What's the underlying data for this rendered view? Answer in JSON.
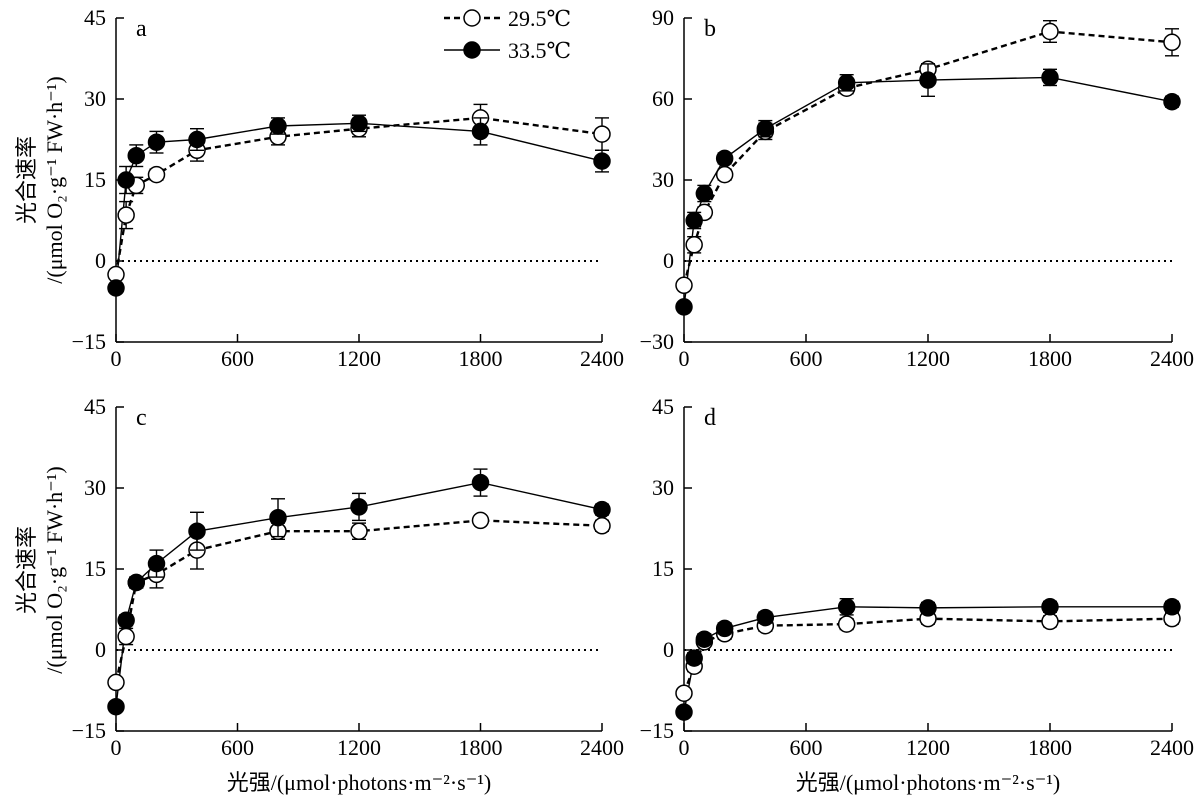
{
  "legend": {
    "items": [
      {
        "label": "29.5℃",
        "style": "open",
        "dash": "dashed"
      },
      {
        "label": "33.5℃",
        "style": "filled",
        "dash": "solid"
      }
    ]
  },
  "axes_text": {
    "ylabel_main": "光合速率",
    "ylabel_unit": "/(μmol O₂·g⁻¹ FW·h⁻¹)",
    "xlabel": "光强/(μmol·photons·m⁻²·s⁻¹)"
  },
  "chart_data": [
    {
      "type": "line",
      "panel": "a",
      "x": [
        0,
        50,
        100,
        200,
        400,
        800,
        1200,
        1800,
        2400
      ],
      "xlim": [
        0,
        2400
      ],
      "xticks": [
        0,
        600,
        1200,
        1800,
        2400
      ],
      "ylim": [
        -15,
        45
      ],
      "yticks": [
        -15,
        0,
        15,
        30,
        45
      ],
      "series": [
        {
          "name": "29.5℃",
          "values": [
            -2.5,
            8.5,
            14,
            16,
            20.5,
            23,
            24.5,
            26.5,
            23.5
          ],
          "err": [
            0,
            2.5,
            1.5,
            1,
            2,
            1.5,
            1.5,
            2.5,
            3
          ]
        },
        {
          "name": "33.5℃",
          "values": [
            -5,
            15,
            19.5,
            22,
            22.5,
            25,
            25.5,
            24,
            18.5
          ],
          "err": [
            0,
            2.5,
            2,
            2,
            2,
            1.5,
            1.5,
            2.5,
            2
          ]
        }
      ]
    },
    {
      "type": "line",
      "panel": "b",
      "x": [
        0,
        50,
        100,
        200,
        400,
        800,
        1200,
        1800,
        2400
      ],
      "xlim": [
        0,
        2400
      ],
      "xticks": [
        0,
        600,
        1200,
        1800,
        2400
      ],
      "ylim": [
        -30,
        90
      ],
      "yticks": [
        -30,
        0,
        30,
        60,
        90
      ],
      "series": [
        {
          "name": "29.5℃",
          "values": [
            -9,
            6,
            18,
            32,
            48,
            64,
            71,
            85,
            81
          ],
          "err": [
            0,
            3,
            2,
            2,
            3,
            2,
            2,
            4,
            5
          ]
        },
        {
          "name": "33.5℃",
          "values": [
            -17,
            15,
            25,
            38,
            49,
            66,
            67,
            68,
            59
          ],
          "err": [
            0,
            3,
            3,
            2,
            3,
            3,
            6,
            3,
            2
          ]
        }
      ]
    },
    {
      "type": "line",
      "panel": "c",
      "x": [
        0,
        50,
        100,
        200,
        400,
        800,
        1200,
        1800,
        2400
      ],
      "xlim": [
        0,
        2400
      ],
      "xticks": [
        0,
        600,
        1200,
        1800,
        2400
      ],
      "ylim": [
        -15,
        45
      ],
      "yticks": [
        -15,
        0,
        15,
        30,
        45
      ],
      "series": [
        {
          "name": "29.5℃",
          "values": [
            -6,
            2.5,
            12.5,
            14,
            18.5,
            22,
            22,
            24,
            23
          ],
          "err": [
            0,
            1.5,
            1,
            2.5,
            3.5,
            1.5,
            1.5,
            0.5,
            1
          ]
        },
        {
          "name": "33.5℃",
          "values": [
            -10.5,
            5.5,
            12.5,
            16,
            22,
            24.5,
            26.5,
            31,
            26
          ],
          "err": [
            0,
            1,
            1,
            2.5,
            3.5,
            3.5,
            2.5,
            2.5,
            1
          ]
        }
      ]
    },
    {
      "type": "line",
      "panel": "d",
      "x": [
        0,
        50,
        100,
        200,
        400,
        800,
        1200,
        1800,
        2400
      ],
      "xlim": [
        0,
        2400
      ],
      "xticks": [
        0,
        600,
        1200,
        1800,
        2400
      ],
      "ylim": [
        -15,
        45
      ],
      "yticks": [
        -15,
        0,
        15,
        30,
        45
      ],
      "series": [
        {
          "name": "29.5℃",
          "values": [
            -8,
            -3,
            1.5,
            3,
            4.5,
            4.8,
            5.8,
            5.3,
            5.8
          ],
          "err": [
            0,
            1,
            0.8,
            1,
            1,
            1,
            1,
            1,
            1
          ]
        },
        {
          "name": "33.5℃",
          "values": [
            -11.5,
            -1.5,
            2,
            4,
            6,
            8,
            7.8,
            8,
            8
          ],
          "err": [
            0,
            1,
            1,
            1,
            1,
            1.5,
            1,
            1,
            1
          ]
        }
      ]
    }
  ]
}
